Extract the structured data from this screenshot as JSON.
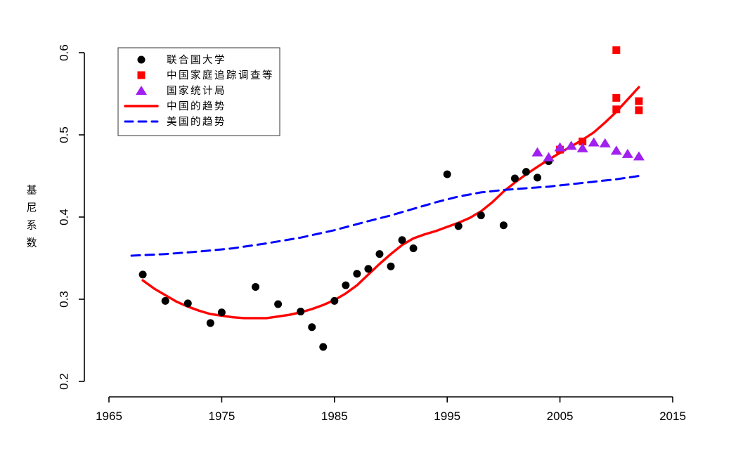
{
  "chart_data": {
    "type": "scatter",
    "title": "",
    "xlabel": "",
    "ylabel": "基尼系数",
    "xlim": [
      1965,
      2015
    ],
    "ylim": [
      0.2,
      0.6
    ],
    "x_ticks": [
      "1965",
      "1975",
      "1985",
      "1995",
      "2005",
      "2015"
    ],
    "y_ticks": [
      "0.2",
      "0.3",
      "0.4",
      "0.5",
      "0.6"
    ],
    "grid": false,
    "legend_position": "top-left",
    "axis_color": "#000000",
    "series": [
      {
        "name": "联合国大学",
        "kind": "scatter",
        "marker": "circle",
        "color": "#000000",
        "points": [
          [
            1968,
            0.33
          ],
          [
            1970,
            0.298
          ],
          [
            1972,
            0.295
          ],
          [
            1974,
            0.271
          ],
          [
            1975,
            0.284
          ],
          [
            1978,
            0.315
          ],
          [
            1980,
            0.294
          ],
          [
            1982,
            0.285
          ],
          [
            1983,
            0.266
          ],
          [
            1984,
            0.242
          ],
          [
            1985,
            0.298
          ],
          [
            1986,
            0.317
          ],
          [
            1987,
            0.331
          ],
          [
            1988,
            0.337
          ],
          [
            1989,
            0.355
          ],
          [
            1990,
            0.34
          ],
          [
            1991,
            0.372
          ],
          [
            1992,
            0.362
          ],
          [
            1995,
            0.452
          ],
          [
            1996,
            0.389
          ],
          [
            1998,
            0.402
          ],
          [
            2000,
            0.39
          ],
          [
            2001,
            0.447
          ],
          [
            2002,
            0.455
          ],
          [
            2003,
            0.448
          ],
          [
            2004,
            0.468
          ]
        ]
      },
      {
        "name": "中国家庭追踪调查等",
        "kind": "scatter",
        "marker": "square",
        "color": "#FF0000",
        "points": [
          [
            2005,
            0.482
          ],
          [
            2007,
            0.492
          ],
          [
            2010,
            0.603
          ],
          [
            2010,
            0.545
          ],
          [
            2010,
            0.531
          ],
          [
            2012,
            0.541
          ],
          [
            2012,
            0.53
          ]
        ]
      },
      {
        "name": "国家统计局",
        "kind": "scatter",
        "marker": "triangle",
        "color": "#A020F0",
        "points": [
          [
            2003,
            0.479
          ],
          [
            2004,
            0.473
          ],
          [
            2005,
            0.485
          ],
          [
            2006,
            0.487
          ],
          [
            2007,
            0.484
          ],
          [
            2008,
            0.491
          ],
          [
            2009,
            0.49
          ],
          [
            2010,
            0.481
          ],
          [
            2011,
            0.477
          ],
          [
            2012,
            0.474
          ]
        ]
      },
      {
        "name": "中国的趋势",
        "kind": "line",
        "style": "solid",
        "color": "#FF0000",
        "points": [
          [
            1968,
            0.323
          ],
          [
            1969,
            0.313
          ],
          [
            1970,
            0.305
          ],
          [
            1971,
            0.297
          ],
          [
            1972,
            0.291
          ],
          [
            1973,
            0.286
          ],
          [
            1974,
            0.282
          ],
          [
            1975,
            0.28
          ],
          [
            1976,
            0.278
          ],
          [
            1977,
            0.277
          ],
          [
            1978,
            0.277
          ],
          [
            1979,
            0.277
          ],
          [
            1980,
            0.279
          ],
          [
            1981,
            0.281
          ],
          [
            1982,
            0.284
          ],
          [
            1983,
            0.288
          ],
          [
            1984,
            0.293
          ],
          [
            1985,
            0.299
          ],
          [
            1986,
            0.307
          ],
          [
            1987,
            0.317
          ],
          [
            1988,
            0.33
          ],
          [
            1989,
            0.343
          ],
          [
            1990,
            0.355
          ],
          [
            1991,
            0.366
          ],
          [
            1992,
            0.374
          ],
          [
            1993,
            0.379
          ],
          [
            1994,
            0.383
          ],
          [
            1995,
            0.388
          ],
          [
            1996,
            0.393
          ],
          [
            1997,
            0.399
          ],
          [
            1998,
            0.407
          ],
          [
            1999,
            0.418
          ],
          [
            2000,
            0.431
          ],
          [
            2001,
            0.442
          ],
          [
            2002,
            0.452
          ],
          [
            2003,
            0.461
          ],
          [
            2004,
            0.47
          ],
          [
            2005,
            0.478
          ],
          [
            2006,
            0.486
          ],
          [
            2007,
            0.494
          ],
          [
            2008,
            0.503
          ],
          [
            2009,
            0.515
          ],
          [
            2010,
            0.528
          ],
          [
            2011,
            0.543
          ],
          [
            2012,
            0.558
          ]
        ]
      },
      {
        "name": "美国的趋势",
        "kind": "line",
        "style": "dashed",
        "color": "#0000FF",
        "points": [
          [
            1967,
            0.353
          ],
          [
            1970,
            0.355
          ],
          [
            1973,
            0.358
          ],
          [
            1976,
            0.362
          ],
          [
            1979,
            0.368
          ],
          [
            1982,
            0.375
          ],
          [
            1985,
            0.384
          ],
          [
            1988,
            0.395
          ],
          [
            1990,
            0.402
          ],
          [
            1992,
            0.41
          ],
          [
            1994,
            0.418
          ],
          [
            1996,
            0.425
          ],
          [
            1998,
            0.43
          ],
          [
            2000,
            0.433
          ],
          [
            2002,
            0.435
          ],
          [
            2004,
            0.437
          ],
          [
            2006,
            0.44
          ],
          [
            2008,
            0.443
          ],
          [
            2010,
            0.446
          ],
          [
            2012,
            0.45
          ]
        ]
      }
    ]
  }
}
